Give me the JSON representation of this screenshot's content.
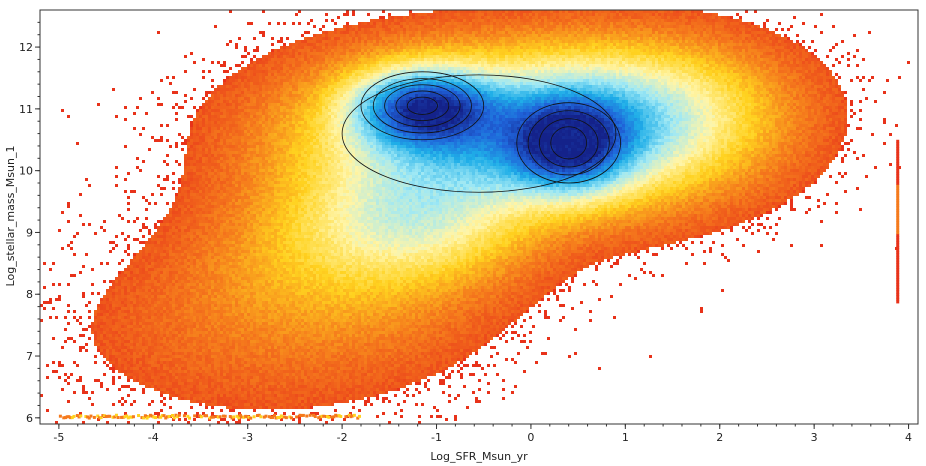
{
  "chart_data": {
    "type": "heatmap",
    "xlabel": "Log_SFR_Msun_yr",
    "ylabel": "Log_stellar_mass_Msun_1",
    "xlim": [
      -5.2,
      4.1
    ],
    "ylim": [
      5.9,
      12.6
    ],
    "x_ticks": [
      -5,
      -4,
      -3,
      -2,
      -1,
      0,
      1,
      2,
      3,
      4
    ],
    "y_ticks": [
      6,
      7,
      8,
      9,
      10,
      11,
      12
    ],
    "colormap": [
      "#e8321a",
      "#f57a1c",
      "#ffd21f",
      "#fff5a8",
      "#9ee8f5",
      "#1faee8",
      "#1f63d9",
      "#14228a"
    ],
    "density_components": [
      {
        "x": -1.15,
        "y": 11.05,
        "sx": 0.45,
        "sy": 0.38,
        "weight": 1.0
      },
      {
        "x": 0.4,
        "y": 10.45,
        "sx": 0.38,
        "sy": 0.45,
        "weight": 0.8
      },
      {
        "x": -0.5,
        "y": 10.6,
        "sx": 1.15,
        "sy": 0.75,
        "weight": 0.45
      },
      {
        "x": 0.9,
        "y": 10.8,
        "sx": 0.9,
        "sy": 0.7,
        "weight": 0.35
      },
      {
        "x": -1.2,
        "y": 9.2,
        "sx": 0.7,
        "sy": 0.6,
        "weight": 0.22
      },
      {
        "x": -1.9,
        "y": 8.5,
        "sx": 0.9,
        "sy": 0.9,
        "weight": 0.1
      },
      {
        "x": -3.0,
        "y": 7.3,
        "sx": 1.1,
        "sy": 0.9,
        "weight": 0.025
      }
    ],
    "floor_stripe": {
      "x_range": [
        -5.0,
        -1.8
      ],
      "y": 6.05,
      "density": 0.12
    },
    "side_column": {
      "x": 3.88,
      "y_range": [
        7.9,
        10.5
      ],
      "density": 0.35
    },
    "contours": [
      {
        "center": [
          -1.15,
          11.05
        ],
        "radii": [
          [
            0.65,
            0.55
          ],
          [
            0.52,
            0.44
          ],
          [
            0.4,
            0.34
          ],
          [
            0.28,
            0.24
          ],
          [
            0.16,
            0.14
          ]
        ]
      },
      {
        "center": [
          0.4,
          10.45
        ],
        "radii": [
          [
            0.55,
            0.65
          ],
          [
            0.43,
            0.52
          ],
          [
            0.31,
            0.39
          ],
          [
            0.19,
            0.26
          ]
        ]
      },
      {
        "center": [
          -0.55,
          10.6
        ],
        "radii": [
          [
            1.45,
            0.95
          ]
        ]
      }
    ]
  }
}
